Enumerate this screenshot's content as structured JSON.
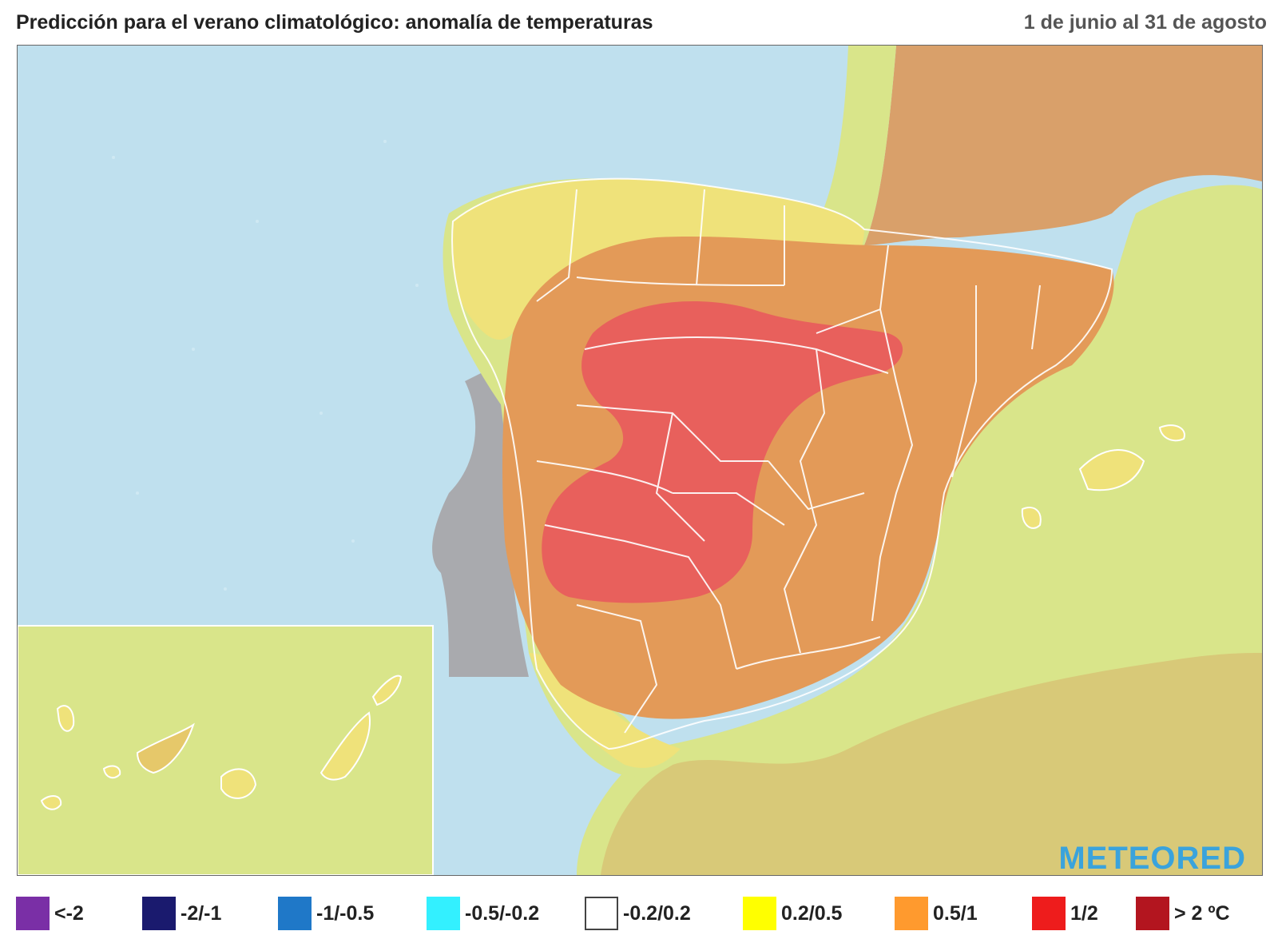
{
  "header": {
    "title": "Predicción para el verano climatológico: anomalía de temperaturas",
    "date_range": "1 de junio al 31 de agosto"
  },
  "logo": {
    "text": "METEORED"
  },
  "legend": {
    "items": [
      {
        "label": "<-2",
        "color": "#7a2fa6"
      },
      {
        "label": "-2/-1",
        "color": "#1a1a6e"
      },
      {
        "label": "-1/-0.5",
        "color": "#1f78c8"
      },
      {
        "label": "-0.5/-0.2",
        "color": "#33f0ff"
      },
      {
        "label": "-0.2/0.2",
        "color": "#ffffff"
      },
      {
        "label": "0.2/0.5",
        "color": "#ffff00"
      },
      {
        "label": "0.5/1",
        "color": "#ff9a2e"
      },
      {
        "label": "1/2",
        "color": "#ee1c1c"
      },
      {
        "label": "> 2 ºC",
        "color": "#b3151f"
      }
    ]
  },
  "map": {
    "colors": {
      "sea": "#bfe0ee",
      "land_neutral": "#d9e58a",
      "anomaly_02_05": "#efe27a",
      "anomaly_05_1": "#e39a58",
      "anomaly_1_2": "#e8605c",
      "portugal_grey": "#a9aaae",
      "france_brown": "#d9a06a",
      "africa": "#d8c978"
    }
  }
}
